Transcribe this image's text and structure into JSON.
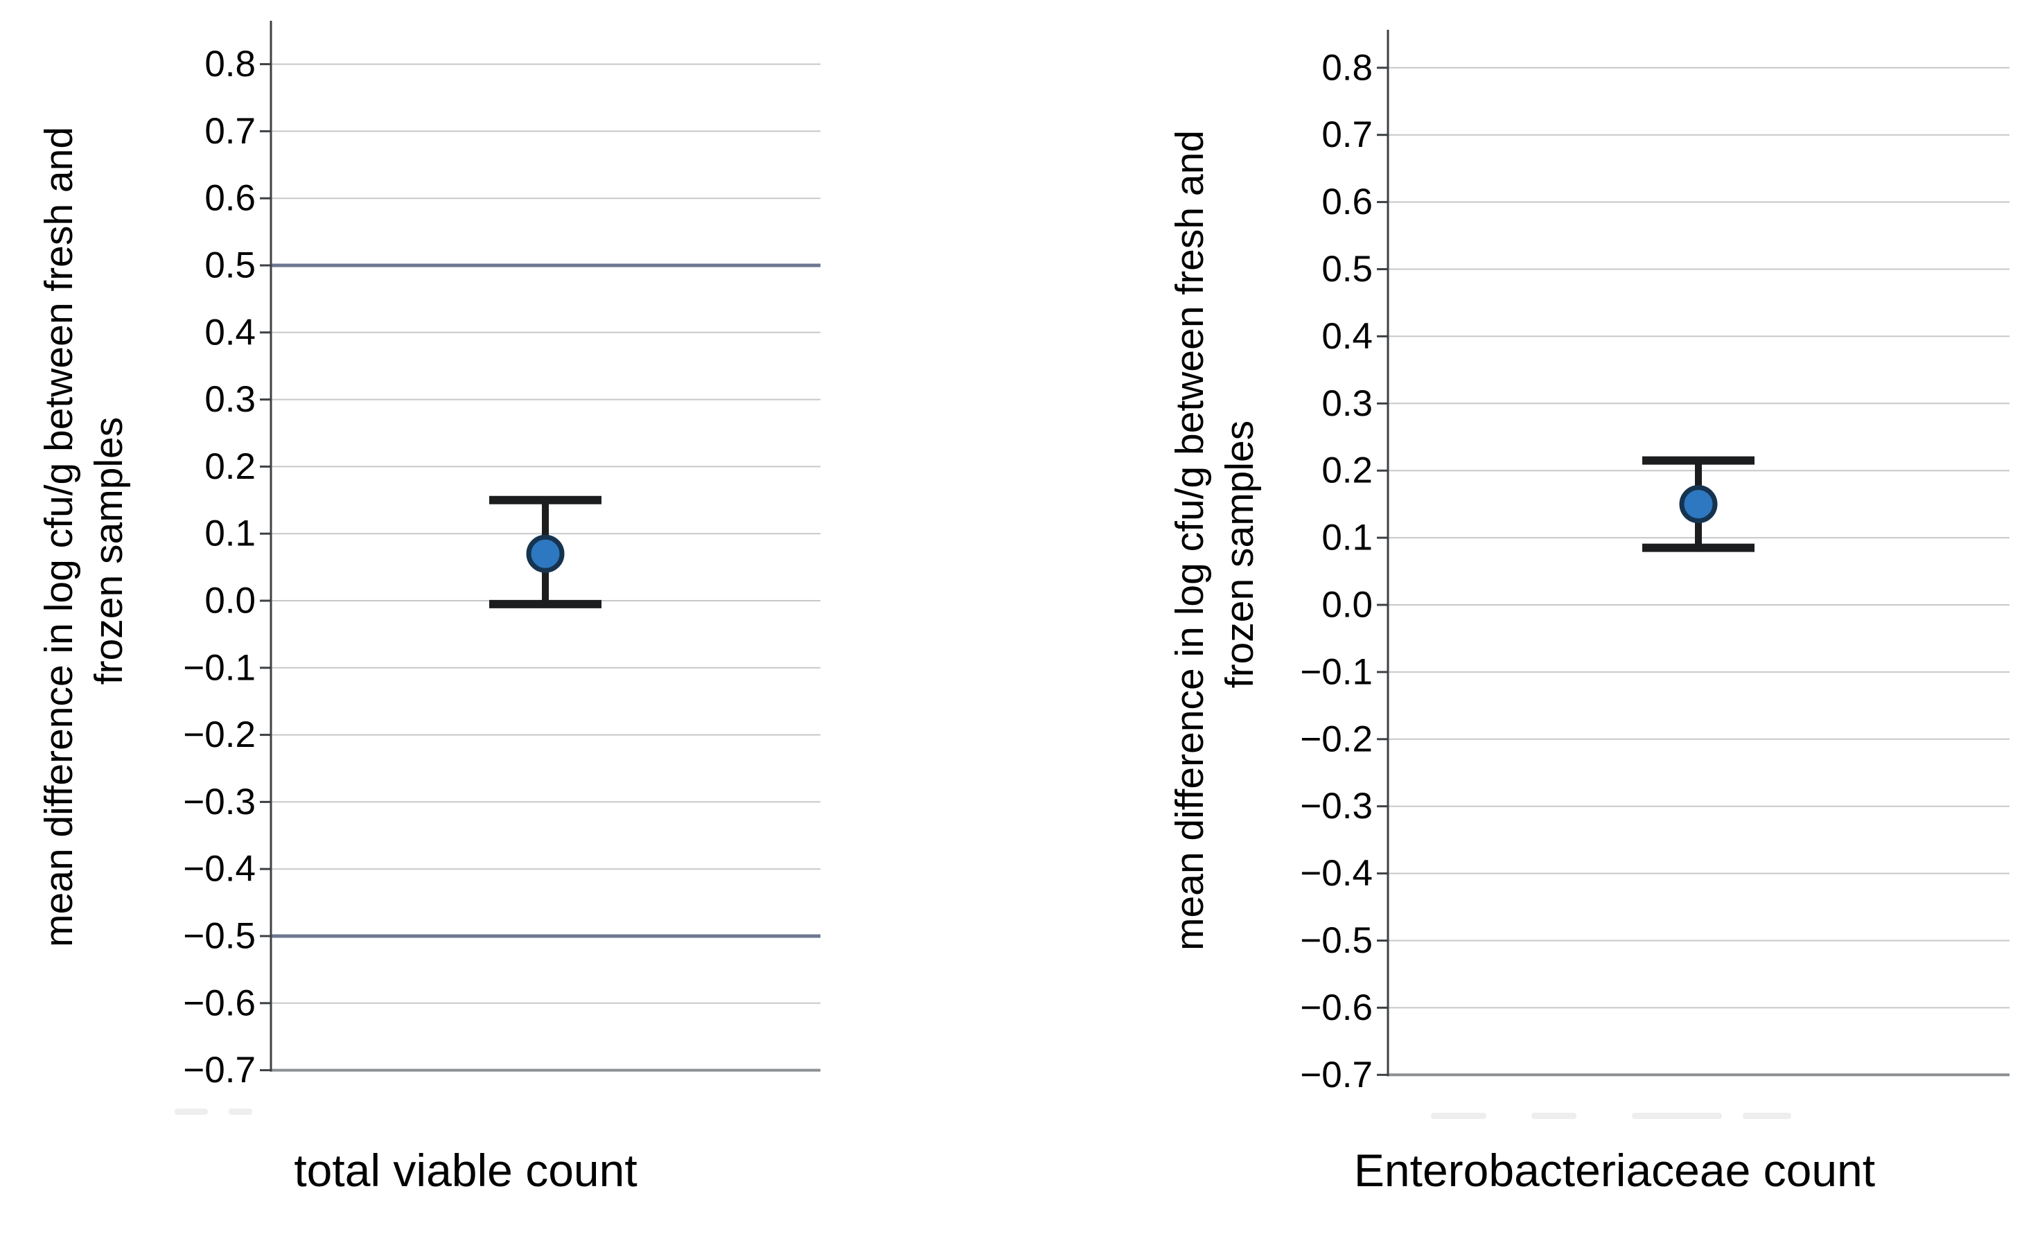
{
  "figure": {
    "background": "#ffffff"
  },
  "colors": {
    "marker_fill": "#2d78c0",
    "marker_stroke": "#16334f",
    "error_bar": "#1b1d1f",
    "equivalence_line": "#6d7790",
    "gridline": "#c6c8ca",
    "y_axis_line": "#3e4144",
    "x_axis_line": "#8d9093",
    "tick": "#3e4144",
    "text": "#000000",
    "ghost_mark": "#d9d9d9"
  },
  "chart_data": [
    {
      "type": "errorbar",
      "title": "",
      "xlabel": "total viable count",
      "ylabel": "mean difference in log cfu/g between fresh and frozen samples",
      "ylabel_lines": [
        "mean difference in log cfu/g between fresh and",
        "frozen samples"
      ],
      "ylim": [
        -0.7,
        0.8
      ],
      "ytick_step": 0.1,
      "ytick_labels": [
        "0.8",
        "0.7",
        "0.6",
        "0.5",
        "0.4",
        "0.3",
        "0.2",
        "0.1",
        "0.0",
        "−0.1",
        "−0.2",
        "−0.3",
        "−0.4",
        "−0.5",
        "−0.6",
        "−0.7"
      ],
      "grid": true,
      "legend": "none",
      "series": [
        {
          "name": "mean_difference",
          "category": "total viable count",
          "mean": 0.07,
          "ci_low": -0.005,
          "ci_high": 0.15
        }
      ],
      "reference_lines": [
        0.5,
        -0.5
      ]
    },
    {
      "type": "errorbar",
      "title": "",
      "xlabel": "Enterobacteriaceae count",
      "ylabel": "mean difference in log cfu/g between fresh and frozen samples",
      "ylabel_lines": [
        "mean difference in log cfu/g between fresh and",
        "frozen samples"
      ],
      "ylim": [
        -0.7,
        0.8
      ],
      "ytick_step": 0.1,
      "ytick_labels": [
        "0.8",
        "0.7",
        "0.6",
        "0.5",
        "0.4",
        "0.3",
        "0.2",
        "0.1",
        "0.0",
        "−0.1",
        "−0.2",
        "−0.3",
        "−0.4",
        "−0.5",
        "−0.6",
        "−0.7"
      ],
      "grid": true,
      "legend": "none",
      "series": [
        {
          "name": "mean_difference",
          "category": "Enterobacteriaceae count",
          "mean": 0.15,
          "ci_low": 0.085,
          "ci_high": 0.215
        }
      ],
      "reference_lines": []
    }
  ]
}
